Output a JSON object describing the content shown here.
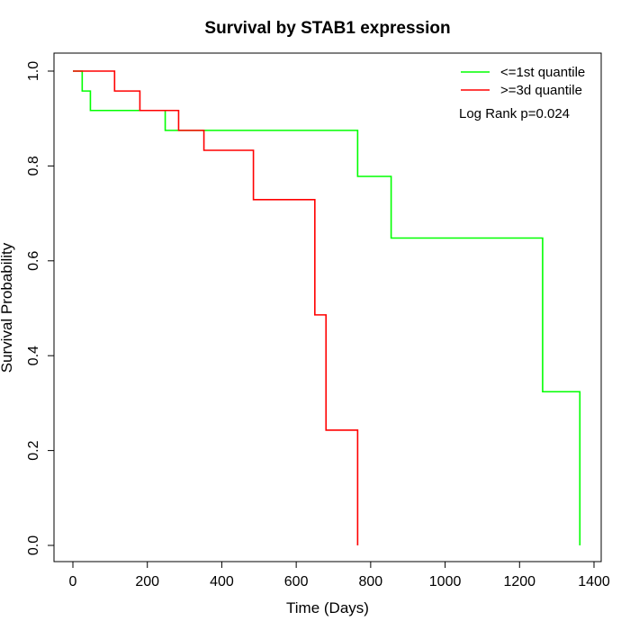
{
  "chart_data": {
    "type": "line",
    "title": "Survival by STAB1 expression",
    "xlabel": "Time (Days)",
    "ylabel": "Survival Probability",
    "xlim": [
      0,
      1400
    ],
    "ylim": [
      0,
      1.0
    ],
    "x_ticks": [
      "0",
      "200",
      "400",
      "600",
      "800",
      "1000",
      "1200",
      "1400"
    ],
    "y_ticks": [
      "0.0",
      "0.2",
      "0.4",
      "0.6",
      "0.8",
      "1.0"
    ],
    "grid": false,
    "legend_position": "top-right",
    "annotation": "Log Rank p=0.024",
    "series": [
      {
        "name": "<=1st quantile",
        "color": "#00ff00",
        "step": true,
        "points": [
          [
            0,
            1.0
          ],
          [
            25,
            0.958
          ],
          [
            47,
            0.917
          ],
          [
            248,
            0.875
          ],
          [
            765,
            0.778
          ],
          [
            855,
            0.648
          ],
          [
            1262,
            0.324
          ],
          [
            1362,
            0.0
          ]
        ]
      },
      {
        "name": ">=3d quantile",
        "color": "#ff0000",
        "step": true,
        "points": [
          [
            0,
            1.0
          ],
          [
            112,
            0.958
          ],
          [
            180,
            0.917
          ],
          [
            284,
            0.875
          ],
          [
            352,
            0.833
          ],
          [
            485,
            0.729
          ],
          [
            650,
            0.486
          ],
          [
            680,
            0.243
          ],
          [
            765,
            0.0
          ]
        ]
      }
    ]
  }
}
